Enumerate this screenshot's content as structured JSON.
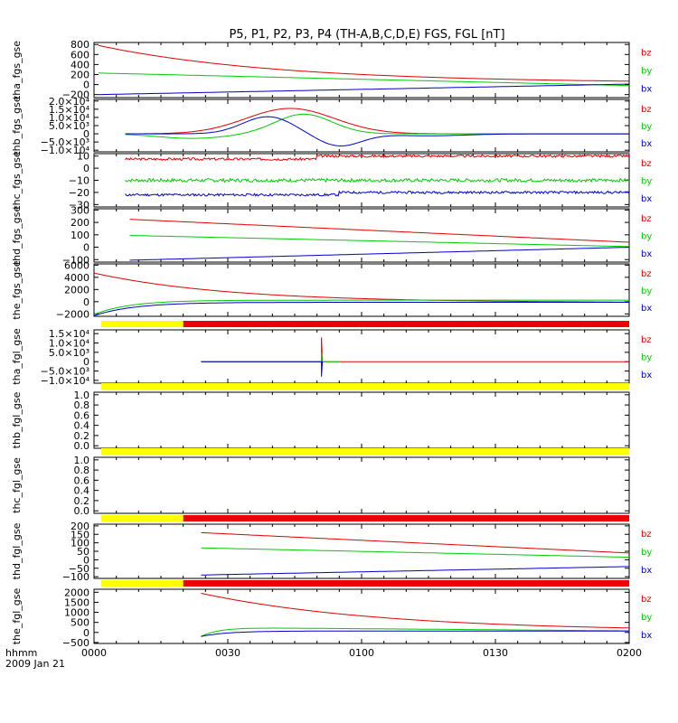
{
  "title": "P5, P1, P2, P3, P4 (TH-A,B,C,D,E) FGS, FGL [nT]",
  "footer": {
    "label": "hhmm",
    "date": "2009 Jan 21"
  },
  "colors": {
    "bz": "#dd0000",
    "by": "#00cc00",
    "bx": "#0000cc",
    "bar_yellow": "#ffff00",
    "bar_red": "#ee0000",
    "axis": "#000000"
  },
  "chart_data": {
    "type": "line",
    "x_axis": {
      "ticks": [
        "0000",
        "0030",
        "0100",
        "0130",
        "0200"
      ],
      "range": [
        "0000",
        "0200"
      ],
      "minor_per_major": 6
    },
    "panels": [
      {
        "ylabel": "tha_fgs_gse",
        "ytick_labels": [
          "800",
          "600",
          "400",
          "200",
          "0",
          "−200"
        ],
        "yticks": [
          800,
          600,
          400,
          200,
          0,
          -200
        ],
        "ylim": [
          -260,
          840
        ],
        "series": [
          {
            "name": "bz",
            "kind": "exp",
            "x0": 1,
            "x1": 120,
            "a": 30,
            "b": 750,
            "tau": 40
          },
          {
            "name": "by",
            "kind": "lin",
            "x0": 1,
            "x1": 120,
            "v0": 230,
            "v1": -20
          },
          {
            "name": "bx",
            "kind": "lin",
            "x0": 1,
            "x1": 120,
            "v0": -200,
            "v1": 10
          }
        ]
      },
      {
        "ylabel": "thb_fgs_gse",
        "ytick_labels": [
          "2.0×10⁴",
          "1.5×10⁴",
          "1.0×10⁴",
          "5.0×10³",
          "0",
          "−5.0×10³",
          "−1.0×10⁴"
        ],
        "yticks": [
          20000,
          15000,
          10000,
          5000,
          0,
          -5000,
          -10000
        ],
        "ylim": [
          -11000,
          21000
        ],
        "series": [
          {
            "name": "bz",
            "kind": "gauss",
            "x0": 7,
            "x1": 120,
            "base": 0,
            "peaks": [
              [
                44,
                15500,
                14
              ]
            ],
            "offset": 2500
          },
          {
            "name": "by",
            "kind": "gauss",
            "x0": 7,
            "x1": 120,
            "base": 0,
            "peaks": [
              [
                47,
                12000,
                9
              ],
              [
                22,
                -2800,
                11
              ]
            ],
            "offset": 0
          },
          {
            "name": "bx",
            "kind": "gauss",
            "x0": 7,
            "x1": 120,
            "base": 0,
            "peaks": [
              [
                39,
                10500,
                8
              ],
              [
                55,
                -7500,
                7
              ],
              [
                75,
                -1200,
                12
              ]
            ],
            "offset": 0
          }
        ]
      },
      {
        "ylabel": "thc_fgs_gse",
        "ytick_labels": [
          "10",
          "0",
          "−10",
          "−20",
          "−30"
        ],
        "yticks": [
          10,
          0,
          -10,
          -20,
          -30
        ],
        "ylim": [
          -32,
          12
        ],
        "series": [
          {
            "name": "bz",
            "kind": "noise",
            "x0": 7,
            "x1": 120,
            "base": 7.5,
            "amp": 1.0,
            "seed": 3,
            "steps": [
              [
                50,
                2.5
              ]
            ]
          },
          {
            "name": "by",
            "kind": "noise",
            "x0": 7,
            "x1": 120,
            "base": -10,
            "amp": 1.4,
            "seed": 7,
            "steps": []
          },
          {
            "name": "bx",
            "kind": "noise",
            "x0": 7,
            "x1": 120,
            "base": -22,
            "amp": 1.0,
            "seed": 11,
            "steps": [
              [
                55,
                2.0
              ]
            ]
          }
        ]
      },
      {
        "ylabel": "thd_fgs_gse",
        "ytick_labels": [
          "300",
          "200",
          "100",
          "0",
          "−100"
        ],
        "yticks": [
          300,
          200,
          100,
          0,
          -100
        ],
        "ylim": [
          -120,
          310
        ],
        "series": [
          {
            "name": "bz",
            "kind": "lin",
            "x0": 8,
            "x1": 120,
            "v0": 225,
            "v1": 40
          },
          {
            "name": "by",
            "kind": "lin",
            "x0": 8,
            "x1": 120,
            "v0": 95,
            "v1": 5
          },
          {
            "name": "bx",
            "kind": "lin",
            "x0": 8,
            "x1": 120,
            "v0": -105,
            "v1": 0
          }
        ]
      },
      {
        "ylabel": "the_fgs_gse",
        "ytick_labels": [
          "6000",
          "4000",
          "2000",
          "0",
          "−2000"
        ],
        "yticks": [
          6000,
          4000,
          2000,
          0,
          -2000
        ],
        "ylim": [
          -2400,
          6200
        ],
        "series": [
          {
            "name": "bz",
            "kind": "exp",
            "x0": 0,
            "x1": 120,
            "a": -150,
            "b": 4850,
            "tau": 30
          },
          {
            "name": "by",
            "kind": "exp",
            "x0": 0,
            "x1": 120,
            "a": 250,
            "b": -2350,
            "tau": 8
          },
          {
            "name": "bx",
            "kind": "exp",
            "x0": 0,
            "x1": 120,
            "a": -100,
            "b": -2200,
            "tau": 9
          }
        ]
      },
      {
        "ylabel": "tha_fgl_gse",
        "ytick_labels": [
          "1.5×10⁴",
          "1.0×10⁴",
          "5.0×10³",
          "0",
          "−5.0×10³",
          "−1.0×10⁴"
        ],
        "yticks": [
          15000,
          10000,
          5000,
          0,
          -5000,
          -10000
        ],
        "ylim": [
          -11500,
          17000
        ],
        "bar": [
          {
            "color": "yellow",
            "from": 0,
            "to": 20
          },
          {
            "color": "red",
            "from": 20,
            "to": 120
          }
        ],
        "series": [
          {
            "name": "bz",
            "kind": "spike",
            "x0": 24,
            "x1": 120,
            "base": 0,
            "at": 51,
            "amp": 13000,
            "end_at": null
          },
          {
            "name": "by",
            "kind": "spike",
            "x0": 24,
            "x1": 55,
            "base": 0,
            "at": 51,
            "amp": 5000,
            "end_at": 55
          },
          {
            "name": "bx",
            "kind": "spike",
            "x0": 24,
            "x1": 51,
            "base": 0,
            "at": 51,
            "amp": -8000,
            "end_at": 51
          }
        ]
      },
      {
        "ylabel": "thb_fgl_gse",
        "ytick_labels": [
          "1.0",
          "0.8",
          "0.6",
          "0.4",
          "0.2",
          "0.0"
        ],
        "yticks": [
          1.0,
          0.8,
          0.6,
          0.4,
          0.2,
          0.0
        ],
        "ylim": [
          -0.05,
          1.05
        ],
        "bar": [
          {
            "color": "yellow",
            "from": 0,
            "to": 120
          }
        ],
        "series": []
      },
      {
        "ylabel": "thc_fgl_gse",
        "ytick_labels": [
          "1.0",
          "0.8",
          "0.6",
          "0.4",
          "0.2",
          "0.0"
        ],
        "yticks": [
          1.0,
          0.8,
          0.6,
          0.4,
          0.2,
          0.0
        ],
        "ylim": [
          -0.05,
          1.05
        ],
        "bar": [
          {
            "color": "yellow",
            "from": 0,
            "to": 120
          }
        ],
        "series": []
      },
      {
        "ylabel": "thd_fgl_gse",
        "ytick_labels": [
          "200",
          "150",
          "100",
          "50",
          "0",
          "−50",
          "−100"
        ],
        "yticks": [
          200,
          150,
          100,
          50,
          0,
          -50,
          -100
        ],
        "ylim": [
          -110,
          210
        ],
        "bar": [
          {
            "color": "yellow",
            "from": 0,
            "to": 20
          },
          {
            "color": "red",
            "from": 20,
            "to": 120
          }
        ],
        "series": [
          {
            "name": "bz",
            "kind": "lin",
            "x0": 24,
            "x1": 120,
            "v0": 160,
            "v1": 40
          },
          {
            "name": "by",
            "kind": "lin",
            "x0": 24,
            "x1": 120,
            "v0": 70,
            "v1": 15
          },
          {
            "name": "bx",
            "kind": "lin",
            "x0": 24,
            "x1": 120,
            "v0": -90,
            "v1": -40
          }
        ]
      },
      {
        "ylabel": "the_fgl_gse",
        "ytick_labels": [
          "2000",
          "1500",
          "1000",
          "500",
          "0",
          "−500"
        ],
        "yticks": [
          2000,
          1500,
          1000,
          500,
          0,
          -500
        ],
        "ylim": [
          -550,
          2150
        ],
        "bar": [
          {
            "color": "yellow",
            "from": 0,
            "to": 20
          },
          {
            "color": "red",
            "from": 20,
            "to": 120
          }
        ],
        "series": [
          {
            "name": "bz",
            "kind": "exp",
            "x0": 24,
            "x1": 120,
            "a": 50,
            "b": 1900,
            "tau": 40,
            "shift": 24
          },
          {
            "name": "by",
            "kind": "rise",
            "x0": 24,
            "x1": 120,
            "v0": -200,
            "v1": 250,
            "tau": 4,
            "shift": 24,
            "decay": 70
          },
          {
            "name": "bx",
            "kind": "rise",
            "x0": 24,
            "x1": 120,
            "v0": -200,
            "v1": 70,
            "tau": 6,
            "shift": 24,
            "decay": 0
          }
        ]
      }
    ]
  }
}
